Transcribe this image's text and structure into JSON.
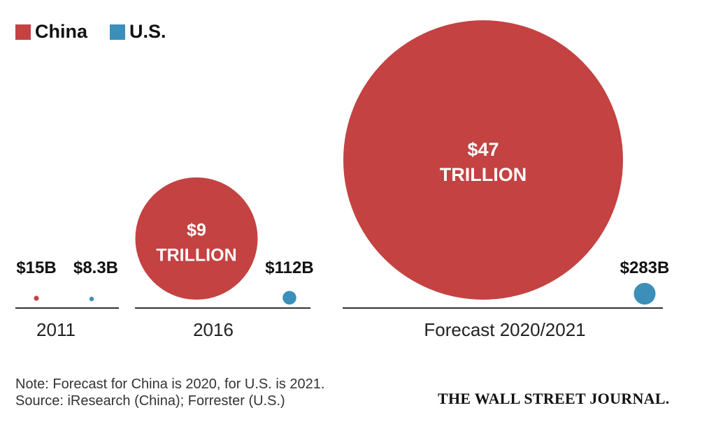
{
  "chart_data": {
    "type": "bubble",
    "title": "",
    "legend": {
      "placement": "top-left",
      "entries": [
        {
          "name": "China",
          "color": "#c44242"
        },
        {
          "name": "U.S.",
          "color": "#3b8fb9"
        }
      ]
    },
    "groups": [
      {
        "label": "2011",
        "china": {
          "value_usd": 15000000000,
          "label_line1": "$15B",
          "label_line2": ""
        },
        "us": {
          "value_usd": 8300000000,
          "label_line1": "$8.3B",
          "label_line2": ""
        }
      },
      {
        "label": "2016",
        "china": {
          "value_usd": 9000000000000,
          "label_line1": "$9",
          "label_line2": "TRILLION"
        },
        "us": {
          "value_usd": 112000000000,
          "label_line1": "$112B",
          "label_line2": ""
        }
      },
      {
        "label": "Forecast 2020/2021",
        "china": {
          "value_usd": 47000000000000,
          "label_line1": "$47",
          "label_line2": "TRILLION"
        },
        "us": {
          "value_usd": 283000000000,
          "label_line1": "$283B",
          "label_line2": ""
        }
      }
    ]
  },
  "footer": {
    "note": "Note: Forecast for China is 2020, for U.S. is 2021.",
    "source": "Source: iResearch (China); Forrester (U.S.)",
    "publisher": "THE WALL STREET JOURNAL."
  }
}
